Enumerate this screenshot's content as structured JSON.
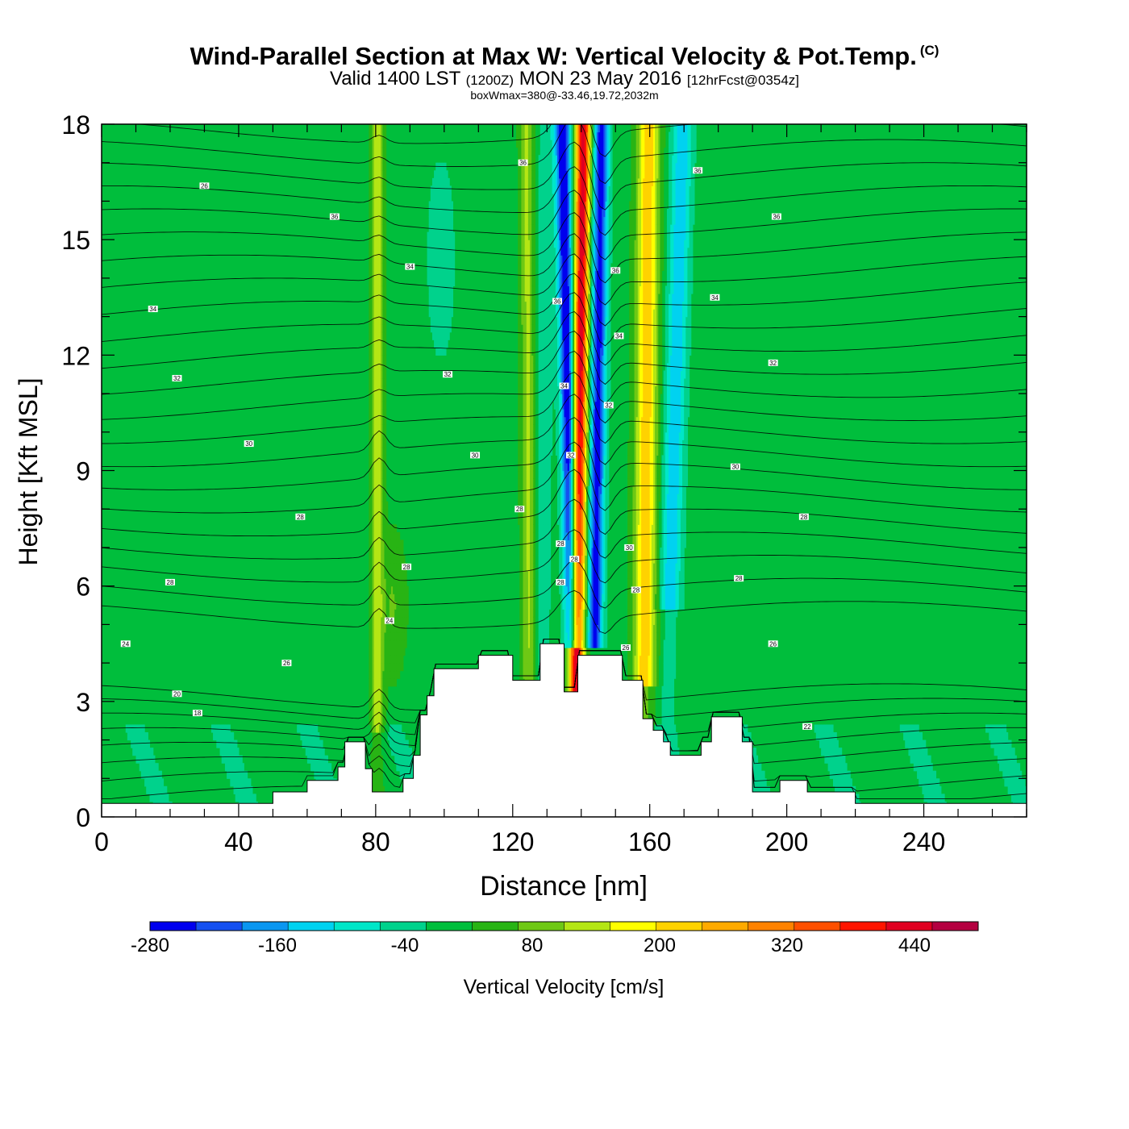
{
  "title": {
    "main": "Wind-Parallel Section at Max W: Vertical Velocity & Pot.Temp.",
    "copyright": "(C)",
    "valid_prefix": "Valid 1400 LST",
    "valid_utc": "(1200Z)",
    "valid_date": "MON 23 May 2016",
    "forecast": "[12hrFcst@0354z]",
    "box": "boxWmax=380@-33.46,19.72,2032m"
  },
  "chart_data": {
    "type": "heatmap",
    "xlabel": "Distance [nm]",
    "ylabel": "Height [Kft MSL]",
    "xlim": [
      0,
      270
    ],
    "ylim": [
      0,
      18
    ],
    "xticks": [
      0,
      40,
      80,
      120,
      160,
      200,
      240
    ],
    "yticks": [
      0,
      3,
      6,
      9,
      12,
      15,
      18
    ],
    "colorbar": {
      "label": "Vertical Velocity [cm/s]",
      "tick_labels": [
        "-280",
        "-160",
        "-40",
        "80",
        "200",
        "320",
        "440"
      ],
      "tick_values": [
        -280,
        -160,
        -40,
        80,
        200,
        320,
        440
      ],
      "range": [
        -280,
        500
      ],
      "colors": [
        "#0000ee",
        "#1450f0",
        "#0a96f0",
        "#00d2f0",
        "#00e6c8",
        "#00d28c",
        "#00be3c",
        "#28b414",
        "#6ec814",
        "#b4e614",
        "#ffff00",
        "#ffd200",
        "#ffaa00",
        "#ff8200",
        "#ff5000",
        "#ff1400",
        "#e00020",
        "#b40040"
      ]
    },
    "terrain_kft": [
      {
        "x": 0,
        "h": 0.35
      },
      {
        "x": 50,
        "h": 0.35
      },
      {
        "x": 50,
        "h": 0.65
      },
      {
        "x": 60,
        "h": 0.65
      },
      {
        "x": 60,
        "h": 0.95
      },
      {
        "x": 69,
        "h": 0.95
      },
      {
        "x": 69,
        "h": 1.3
      },
      {
        "x": 71,
        "h": 1.3
      },
      {
        "x": 71,
        "h": 1.95
      },
      {
        "x": 77,
        "h": 1.95
      },
      {
        "x": 77,
        "h": 1.25
      },
      {
        "x": 79,
        "h": 1.25
      },
      {
        "x": 79,
        "h": 0.65
      },
      {
        "x": 88,
        "h": 0.65
      },
      {
        "x": 88,
        "h": 1.0
      },
      {
        "x": 91,
        "h": 1.0
      },
      {
        "x": 91,
        "h": 1.6
      },
      {
        "x": 93,
        "h": 1.6
      },
      {
        "x": 93,
        "h": 2.65
      },
      {
        "x": 95,
        "h": 2.65
      },
      {
        "x": 95,
        "h": 3.15
      },
      {
        "x": 97,
        "h": 3.15
      },
      {
        "x": 97,
        "h": 3.85
      },
      {
        "x": 110,
        "h": 3.85
      },
      {
        "x": 110,
        "h": 4.2
      },
      {
        "x": 120,
        "h": 4.2
      },
      {
        "x": 120,
        "h": 3.55
      },
      {
        "x": 128,
        "h": 3.55
      },
      {
        "x": 128,
        "h": 4.5
      },
      {
        "x": 135,
        "h": 4.5
      },
      {
        "x": 135,
        "h": 3.25
      },
      {
        "x": 139,
        "h": 3.25
      },
      {
        "x": 139,
        "h": 4.2
      },
      {
        "x": 152,
        "h": 4.2
      },
      {
        "x": 152,
        "h": 3.55
      },
      {
        "x": 158,
        "h": 3.55
      },
      {
        "x": 158,
        "h": 2.55
      },
      {
        "x": 161,
        "h": 2.55
      },
      {
        "x": 161,
        "h": 2.25
      },
      {
        "x": 164,
        "h": 2.25
      },
      {
        "x": 164,
        "h": 1.95
      },
      {
        "x": 166,
        "h": 1.95
      },
      {
        "x": 166,
        "h": 1.6
      },
      {
        "x": 175,
        "h": 1.6
      },
      {
        "x": 175,
        "h": 1.95
      },
      {
        "x": 178,
        "h": 1.95
      },
      {
        "x": 178,
        "h": 2.6
      },
      {
        "x": 187,
        "h": 2.6
      },
      {
        "x": 187,
        "h": 1.95
      },
      {
        "x": 190,
        "h": 1.95
      },
      {
        "x": 190,
        "h": 0.65
      },
      {
        "x": 198,
        "h": 0.65
      },
      {
        "x": 198,
        "h": 0.95
      },
      {
        "x": 206,
        "h": 0.95
      },
      {
        "x": 206,
        "h": 0.65
      },
      {
        "x": 220,
        "h": 0.65
      },
      {
        "x": 220,
        "h": 0.35
      },
      {
        "x": 270,
        "h": 0.35
      }
    ],
    "contour_labels": [
      {
        "text": "26",
        "x": 30,
        "y": 16.4
      },
      {
        "text": "36",
        "x": 68,
        "y": 15.6
      },
      {
        "text": "34",
        "x": 90,
        "y": 14.3
      },
      {
        "text": "34",
        "x": 15,
        "y": 13.2
      },
      {
        "text": "32",
        "x": 22,
        "y": 11.4
      },
      {
        "text": "32",
        "x": 101,
        "y": 11.5
      },
      {
        "text": "30",
        "x": 43,
        "y": 9.7
      },
      {
        "text": "30",
        "x": 109,
        "y": 9.4
      },
      {
        "text": "28",
        "x": 58,
        "y": 7.8
      },
      {
        "text": "28",
        "x": 20,
        "y": 6.1
      },
      {
        "text": "28",
        "x": 89,
        "y": 6.5
      },
      {
        "text": "24",
        "x": 84,
        "y": 5.1
      },
      {
        "text": "24",
        "x": 7,
        "y": 4.5
      },
      {
        "text": "26",
        "x": 54,
        "y": 4.0
      },
      {
        "text": "20",
        "x": 22,
        "y": 3.2
      },
      {
        "text": "18",
        "x": 28,
        "y": 2.7
      },
      {
        "text": "36",
        "x": 123,
        "y": 17.0
      },
      {
        "text": "36",
        "x": 174,
        "y": 16.8
      },
      {
        "text": "36",
        "x": 197,
        "y": 15.6
      },
      {
        "text": "36",
        "x": 150,
        "y": 14.2
      },
      {
        "text": "36",
        "x": 133,
        "y": 13.4
      },
      {
        "text": "34",
        "x": 179,
        "y": 13.5
      },
      {
        "text": "34",
        "x": 151,
        "y": 12.5
      },
      {
        "text": "34",
        "x": 135,
        "y": 11.2
      },
      {
        "text": "32",
        "x": 196,
        "y": 11.8
      },
      {
        "text": "32",
        "x": 148,
        "y": 10.7
      },
      {
        "text": "32",
        "x": 137,
        "y": 9.4
      },
      {
        "text": "30",
        "x": 185,
        "y": 9.1
      },
      {
        "text": "28",
        "x": 122,
        "y": 8.0
      },
      {
        "text": "28",
        "x": 205,
        "y": 7.8
      },
      {
        "text": "30",
        "x": 154,
        "y": 7.0
      },
      {
        "text": "28",
        "x": 134,
        "y": 7.1
      },
      {
        "text": "28",
        "x": 138,
        "y": 6.7
      },
      {
        "text": "28",
        "x": 186,
        "y": 6.2
      },
      {
        "text": "28",
        "x": 134,
        "y": 6.1
      },
      {
        "text": "28",
        "x": 156,
        "y": 5.9
      },
      {
        "text": "26",
        "x": 196,
        "y": 4.5
      },
      {
        "text": "26",
        "x": 153,
        "y": 4.4
      },
      {
        "text": "22",
        "x": 206,
        "y": 2.35
      }
    ]
  }
}
